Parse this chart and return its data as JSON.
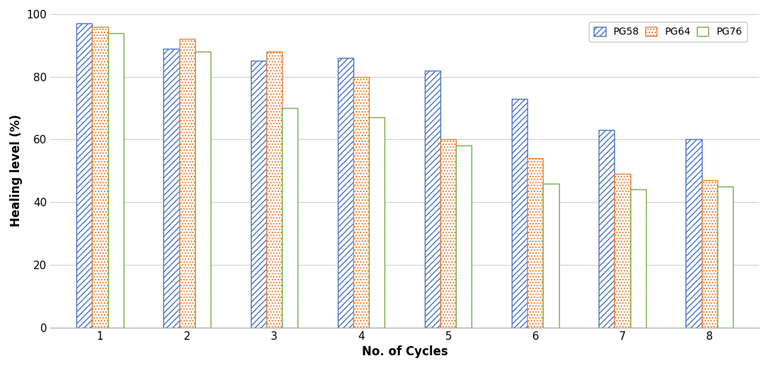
{
  "categories": [
    1,
    2,
    3,
    4,
    5,
    6,
    7,
    8
  ],
  "pg58": [
    97,
    89,
    85,
    86,
    82,
    73,
    63,
    60
  ],
  "pg64": [
    96,
    92,
    88,
    80,
    60,
    54,
    49,
    47
  ],
  "pg76": [
    94,
    88,
    70,
    67,
    58,
    46,
    44,
    45
  ],
  "bar_color_pg58": "#4472C4",
  "bar_color_pg64": "#ED7D31",
  "bar_color_pg76": "#70AD47",
  "xlabel": "No. of Cycles",
  "ylabel": "Healing level (%)",
  "ylim": [
    0,
    100
  ],
  "yticks": [
    0,
    20,
    40,
    60,
    80,
    100
  ],
  "background_color": "#FFFFFF",
  "hatch_pg58": "////",
  "hatch_pg64": "....",
  "hatch_pg76": ">>>>"
}
